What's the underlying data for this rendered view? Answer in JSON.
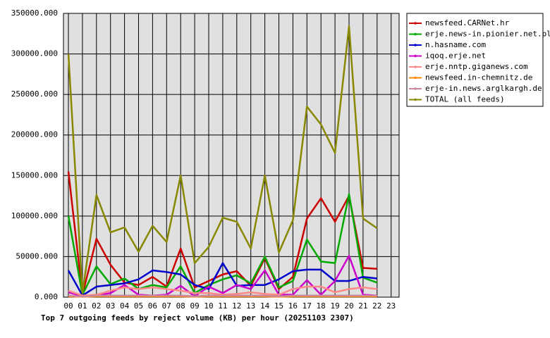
{
  "chart_data": {
    "type": "line",
    "title": "Top 7 outgoing feeds by reject volume (KB) per hour (20251103 2307)",
    "categories": [
      "00",
      "01",
      "02",
      "03",
      "04",
      "05",
      "06",
      "07",
      "08",
      "09",
      "10",
      "11",
      "12",
      "13",
      "14",
      "15",
      "16",
      "17",
      "18",
      "19",
      "20",
      "21",
      "22",
      "23"
    ],
    "ylim": [
      0,
      350000
    ],
    "yticks": [
      {
        "value": 0,
        "label": "0.000"
      },
      {
        "value": 50000,
        "label": "50000.000"
      },
      {
        "value": 100000,
        "label": "100000.000"
      },
      {
        "value": 150000,
        "label": "150000.000"
      },
      {
        "value": 200000,
        "label": "200000.000"
      },
      {
        "value": 250000,
        "label": "250000.000"
      },
      {
        "value": 300000,
        "label": "300000.000"
      },
      {
        "value": 350000,
        "label": "350000.000"
      }
    ],
    "grid": true,
    "legend": "right",
    "series": [
      {
        "name": "newsfeed.CARNet.hr",
        "color": "#cc0000",
        "values": [
          155000,
          3000,
          72000,
          40000,
          18000,
          15000,
          25000,
          13000,
          60000,
          12000,
          20000,
          28000,
          32000,
          14000,
          48000,
          10000,
          25000,
          97000,
          122000,
          93000,
          125000,
          36000,
          35000,
          null
        ]
      },
      {
        "name": "erje.news-in.pionier.net.pl",
        "color": "#00aa00",
        "values": [
          100000,
          3000,
          38000,
          16000,
          23000,
          10000,
          15000,
          12000,
          38000,
          5000,
          15000,
          22000,
          27000,
          17000,
          50000,
          12000,
          20000,
          71000,
          44000,
          42000,
          127000,
          24000,
          18000,
          null
        ]
      },
      {
        "name": "n.hasname.com",
        "color": "#0000cc",
        "values": [
          33000,
          2000,
          13000,
          15000,
          17000,
          22000,
          33000,
          31000,
          28000,
          15000,
          10000,
          42000,
          14000,
          15000,
          15000,
          22000,
          32000,
          34000,
          34000,
          20000,
          20000,
          25000,
          23000,
          null
        ]
      },
      {
        "name": "iqoq.erje.net",
        "color": "#cc00cc",
        "values": [
          6000,
          1000,
          2000,
          5000,
          15000,
          3000,
          2000,
          3000,
          14000,
          1000,
          13000,
          5000,
          15000,
          10000,
          33000,
          3000,
          3000,
          21000,
          3000,
          20000,
          51000,
          3000,
          2000,
          null
        ]
      },
      {
        "name": "erje.nntp.giganews.com",
        "color": "#ff8888",
        "values": [
          8000,
          2000,
          3000,
          8000,
          12000,
          10000,
          12000,
          10000,
          8000,
          5000,
          5000,
          3000,
          4000,
          6000,
          4000,
          3000,
          10000,
          13000,
          13000,
          6000,
          10000,
          12000,
          10000,
          null
        ]
      },
      {
        "name": "newsfeed.in-chemnitz.de",
        "color": "#ff8800",
        "values": [
          1000,
          500,
          1000,
          1000,
          1000,
          1000,
          1000,
          1000,
          1000,
          500,
          1000,
          1000,
          1000,
          1000,
          1000,
          500,
          1000,
          1000,
          1000,
          1000,
          1000,
          1000,
          1000,
          null
        ]
      },
      {
        "name": "erje-in.news.arglkargh.de",
        "color": "#cc8899",
        "values": [
          2000,
          500,
          2000,
          2000,
          2000,
          2000,
          2000,
          2000,
          2000,
          1000,
          2000,
          2000,
          2000,
          2000,
          2000,
          1000,
          2000,
          2000,
          2000,
          2000,
          2000,
          2000,
          2000,
          null
        ]
      },
      {
        "name": "TOTAL (all feeds)",
        "color": "#888800",
        "values": [
          300000,
          5000,
          126000,
          80000,
          86000,
          56000,
          88000,
          68000,
          150000,
          42000,
          62000,
          98000,
          93000,
          60000,
          150000,
          55000,
          95000,
          235000,
          213000,
          178000,
          334000,
          97000,
          85000,
          null
        ]
      }
    ]
  }
}
